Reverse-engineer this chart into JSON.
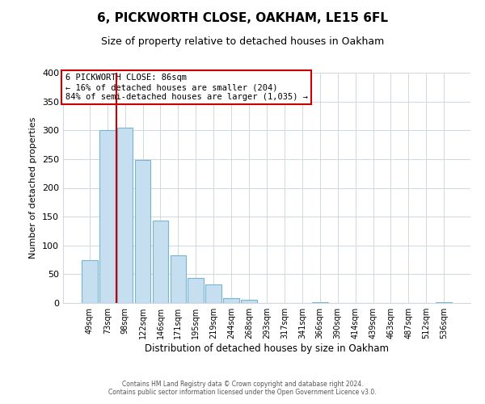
{
  "title": "6, PICKWORTH CLOSE, OAKHAM, LE15 6FL",
  "subtitle": "Size of property relative to detached houses in Oakham",
  "xlabel": "Distribution of detached houses by size in Oakham",
  "ylabel": "Number of detached properties",
  "bar_labels": [
    "49sqm",
    "73sqm",
    "98sqm",
    "122sqm",
    "146sqm",
    "171sqm",
    "195sqm",
    "219sqm",
    "244sqm",
    "268sqm",
    "293sqm",
    "317sqm",
    "341sqm",
    "366sqm",
    "390sqm",
    "414sqm",
    "439sqm",
    "463sqm",
    "487sqm",
    "512sqm",
    "536sqm"
  ],
  "bar_heights": [
    75,
    300,
    305,
    249,
    143,
    83,
    43,
    32,
    8,
    6,
    0,
    0,
    0,
    2,
    0,
    0,
    0,
    0,
    0,
    0,
    2
  ],
  "bar_color": "#c5dff0",
  "bar_edge_color": "#7ab4d4",
  "vline_color": "#cc0000",
  "annotation_title": "6 PICKWORTH CLOSE: 86sqm",
  "annotation_line1": "← 16% of detached houses are smaller (204)",
  "annotation_line2": "84% of semi-detached houses are larger (1,035) →",
  "annotation_box_color": "white",
  "annotation_box_edge": "#cc0000",
  "ylim": [
    0,
    400
  ],
  "yticks": [
    0,
    50,
    100,
    150,
    200,
    250,
    300,
    350,
    400
  ],
  "footer1": "Contains HM Land Registry data © Crown copyright and database right 2024.",
  "footer2": "Contains public sector information licensed under the Open Government Licence v3.0."
}
